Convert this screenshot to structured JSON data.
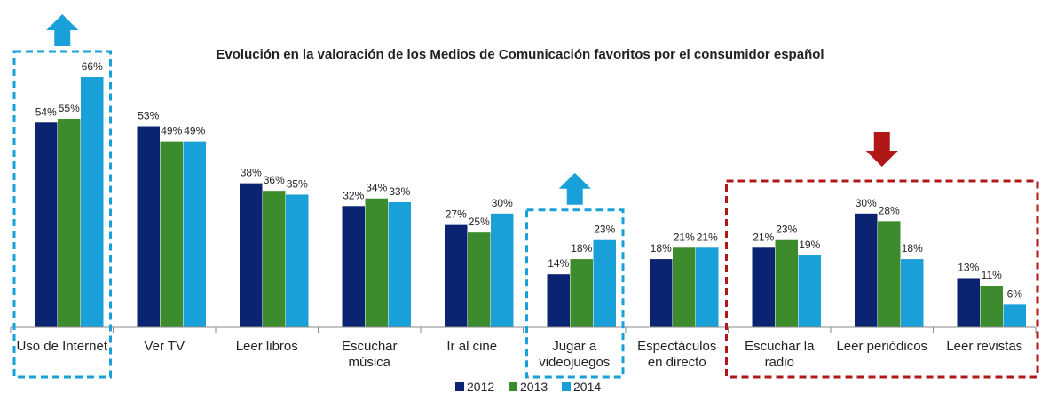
{
  "chart_data": {
    "type": "bar",
    "title": "Evolución en la valoración de los Medios de Comunicación favoritos por el consumidor español",
    "categories": [
      [
        "Uso de Internet"
      ],
      [
        "Ver TV"
      ],
      [
        "Leer libros"
      ],
      [
        "Escuchar",
        "música"
      ],
      [
        "Ir al cine"
      ],
      [
        "Jugar a",
        "videojuegos"
      ],
      [
        "Espectáculos",
        "en directo"
      ],
      [
        "Escuchar la",
        "radio"
      ],
      [
        "Leer periódicos"
      ],
      [
        "Leer revistas"
      ]
    ],
    "series": [
      {
        "name": "2012",
        "color": "#0b2471",
        "values": [
          54,
          53,
          38,
          32,
          27,
          14,
          18,
          21,
          30,
          13
        ]
      },
      {
        "name": "2013",
        "color": "#3c8c2e",
        "values": [
          55,
          49,
          36,
          34,
          25,
          18,
          21,
          23,
          28,
          11
        ]
      },
      {
        "name": "2014",
        "color": "#1aa0d8",
        "values": [
          66,
          49,
          35,
          33,
          30,
          23,
          21,
          19,
          18,
          6
        ]
      }
    ],
    "value_labels": [
      [
        "54%",
        "55%",
        "66%"
      ],
      [
        "53%",
        "49%",
        "49%"
      ],
      [
        "38%",
        "36%",
        "35%"
      ],
      [
        "32%",
        "34%",
        "33%"
      ],
      [
        "27%",
        "25%",
        "30%"
      ],
      [
        "14%",
        "18%",
        "23%"
      ],
      [
        "18%",
        "21%",
        "21%"
      ],
      [
        "21%",
        "23%",
        "19%"
      ],
      [
        "30%",
        "28%",
        "18%"
      ],
      [
        "13%",
        "11%",
        "6%"
      ]
    ],
    "ylim": [
      0,
      70
    ],
    "grid": false,
    "legend_position": "bottom-center",
    "highlights": [
      {
        "categories": [
          0
        ],
        "color": "#1aa0d8",
        "arrow": "up"
      },
      {
        "categories": [
          5
        ],
        "color": "#1aa0d8",
        "arrow": "up"
      },
      {
        "categories": [
          7,
          8,
          9
        ],
        "color": "#b01818",
        "arrow": "down"
      }
    ]
  }
}
